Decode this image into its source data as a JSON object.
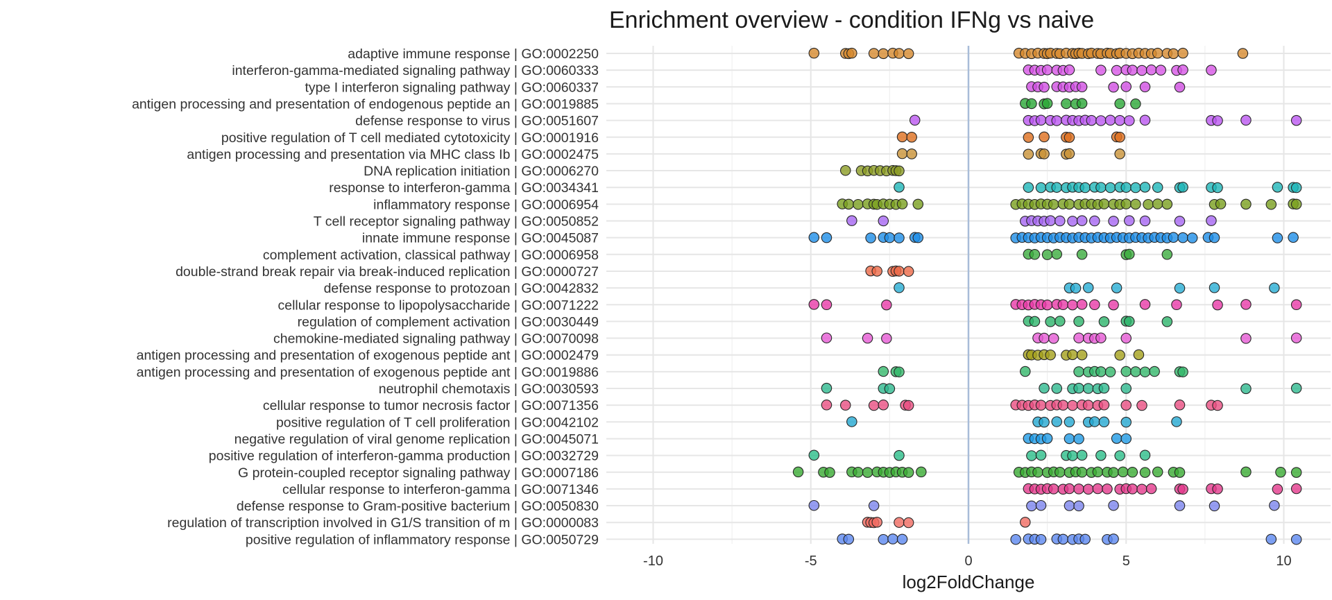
{
  "chart_data": {
    "type": "scatter",
    "title": "Enrichment overview - condition IFNg vs naive",
    "xlabel": "log2FoldChange",
    "ylabel": "",
    "xlim": [
      -10.9,
      10.9
    ],
    "x_ticks": [
      -10,
      -5,
      0,
      5,
      10
    ],
    "grid": "on",
    "legend": "none",
    "reference_line": 0,
    "series": [
      {
        "name": "adaptive immune response | GO:0002250",
        "color": "#d6892e",
        "values": [
          -4.9,
          -3.9,
          -3.8,
          -3.7,
          -3.0,
          -2.7,
          -2.4,
          -2.2,
          -1.9,
          1.6,
          1.8,
          2.0,
          2.2,
          2.4,
          2.5,
          2.6,
          2.8,
          2.9,
          3.1,
          3.3,
          3.4,
          3.5,
          3.6,
          3.8,
          3.9,
          4.1,
          4.2,
          4.4,
          4.5,
          4.7,
          4.8,
          5.0,
          5.2,
          5.4,
          5.6,
          5.8,
          6.0,
          6.3,
          6.5,
          6.8,
          8.7
        ]
      },
      {
        "name": "interferon-gamma-mediated signaling pathway | GO:0060333",
        "color": "#d755e6",
        "values": [
          1.9,
          2.1,
          2.3,
          2.5,
          2.8,
          3.0,
          3.2,
          4.2,
          4.7,
          5.0,
          5.2,
          5.5,
          5.8,
          6.1,
          6.6,
          6.8,
          7.7
        ]
      },
      {
        "name": "type I interferon signaling pathway | GO:0060337",
        "color": "#d14fe2",
        "values": [
          2.0,
          2.2,
          2.4,
          2.8,
          3.0,
          3.2,
          3.4,
          3.6,
          4.6,
          5.0,
          5.6,
          6.7
        ]
      },
      {
        "name": "antigen processing and presentation of endogenous peptide an | GO:0019885",
        "color": "#2ba836",
        "values": [
          1.8,
          2.0,
          2.4,
          2.5,
          3.1,
          3.4,
          3.6,
          4.8,
          5.3
        ]
      },
      {
        "name": "defense response to virus | GO:0051607",
        "color": "#bb57f1",
        "values": [
          -1.7,
          1.9,
          2.1,
          2.3,
          2.6,
          2.8,
          3.1,
          3.3,
          3.5,
          3.7,
          3.9,
          4.2,
          4.5,
          4.8,
          5.1,
          5.6,
          7.7,
          7.9,
          8.8,
          10.4
        ]
      },
      {
        "name": "positive regulation of T cell mediated cytotoxicity | GO:0001916",
        "color": "#de6f1e",
        "values": [
          -2.1,
          -1.8,
          1.9,
          2.4,
          3.1,
          3.2,
          4.7,
          4.8
        ]
      },
      {
        "name": "antigen processing and presentation via MHC class Ib | GO:0002475",
        "color": "#c99237",
        "values": [
          -2.1,
          -1.8,
          1.9,
          2.3,
          2.4,
          3.1,
          3.2,
          4.8
        ]
      },
      {
        "name": "DNA replication initiation | GO:0006270",
        "color": "#8c9c25",
        "values": [
          -3.9,
          -3.4,
          -3.2,
          -3.0,
          -2.8,
          -2.6,
          -2.4,
          -2.3,
          -2.2
        ]
      },
      {
        "name": "response to interferon-gamma | GO:0034341",
        "color": "#1fb6b9",
        "values": [
          -2.2,
          1.9,
          2.3,
          2.6,
          2.8,
          3.1,
          3.3,
          3.5,
          3.7,
          4.0,
          4.2,
          4.5,
          4.8,
          5.0,
          5.3,
          5.6,
          6.0,
          6.7,
          6.8,
          7.7,
          7.9,
          9.8,
          10.3,
          10.4
        ]
      },
      {
        "name": "inflammatory response | GO:0006954",
        "color": "#7ba01f",
        "values": [
          -4.0,
          -3.8,
          -3.5,
          -3.2,
          -3.0,
          -2.9,
          -2.7,
          -2.5,
          -2.3,
          -2.1,
          -1.6,
          1.5,
          1.7,
          1.9,
          2.1,
          2.3,
          2.5,
          2.7,
          3.0,
          3.2,
          3.5,
          3.7,
          3.9,
          4.1,
          4.3,
          4.6,
          4.8,
          5.0,
          5.3,
          5.7,
          6.0,
          6.3,
          7.8,
          8.0,
          8.8,
          9.6,
          10.3,
          10.4
        ]
      },
      {
        "name": "T cell receptor signaling pathway | GO:0050852",
        "color": "#a667f2",
        "values": [
          -3.7,
          -2.7,
          1.8,
          2.0,
          2.2,
          2.4,
          2.6,
          2.9,
          3.3,
          3.6,
          4.0,
          4.6,
          5.1,
          5.6,
          6.7,
          7.7
        ]
      },
      {
        "name": "innate immune response | GO:0045087",
        "color": "#1e8ee8",
        "values": [
          -4.9,
          -4.5,
          -3.1,
          -2.7,
          -2.5,
          -2.2,
          -1.7,
          -1.6,
          1.5,
          1.7,
          1.9,
          2.1,
          2.3,
          2.5,
          2.7,
          2.9,
          3.1,
          3.3,
          3.5,
          3.7,
          3.9,
          4.1,
          4.3,
          4.5,
          4.7,
          4.9,
          5.1,
          5.3,
          5.5,
          5.7,
          5.9,
          6.1,
          6.3,
          6.5,
          6.8,
          7.1,
          7.6,
          7.8,
          9.8,
          10.3
        ]
      },
      {
        "name": "complement activation, classical pathway | GO:0006958",
        "color": "#3cad3e",
        "values": [
          1.9,
          2.1,
          2.5,
          2.8,
          3.6,
          5.0,
          5.1,
          6.3
        ]
      },
      {
        "name": "double-strand break repair via break-induced replication | GO:0000727",
        "color": "#ee6a49",
        "values": [
          -3.1,
          -2.9,
          -2.4,
          -2.3,
          -2.2,
          -1.9
        ]
      },
      {
        "name": "defense response to protozoan | GO:0042832",
        "color": "#28aed4",
        "values": [
          -2.2,
          3.2,
          3.4,
          3.8,
          4.7,
          6.7,
          7.8,
          9.7
        ]
      },
      {
        "name": "cellular response to lipopolysaccharide | GO:0071222",
        "color": "#e83aa8",
        "values": [
          -4.9,
          -4.5,
          -2.6,
          1.5,
          1.7,
          1.9,
          2.1,
          2.3,
          2.5,
          2.8,
          3.0,
          3.3,
          3.6,
          4.0,
          4.6,
          5.6,
          6.6,
          7.9,
          8.8,
          10.4
        ]
      },
      {
        "name": "regulation of complement activation | GO:0030449",
        "color": "#2db56b",
        "values": [
          1.9,
          2.1,
          2.6,
          2.9,
          3.5,
          4.3,
          5.0,
          5.1,
          6.3
        ]
      },
      {
        "name": "chemokine-mediated signaling pathway | GO:0070098",
        "color": "#e65ad4",
        "values": [
          -4.5,
          -3.2,
          -2.6,
          2.2,
          2.4,
          2.7,
          3.5,
          3.8,
          4.0,
          4.2,
          5.0,
          8.8,
          10.4
        ]
      },
      {
        "name": "antigen processing and presentation of exogenous peptide ant | GO:0002479",
        "color": "#a5a11b",
        "values": [
          1.9,
          2.0,
          2.2,
          2.4,
          2.6,
          3.1,
          3.3,
          3.6,
          4.8,
          5.4
        ]
      },
      {
        "name": "antigen processing and presentation of exogenous peptide ant | GO:0019886",
        "color": "#35b86c",
        "values": [
          -2.7,
          -2.3,
          -2.2,
          1.8,
          3.5,
          3.8,
          4.0,
          4.2,
          4.5,
          5.0,
          5.3,
          5.6,
          5.9,
          6.7,
          6.8
        ]
      },
      {
        "name": "neutrophil chemotaxis | GO:0030593",
        "color": "#2eb98f",
        "values": [
          -4.5,
          -2.7,
          -2.5,
          2.4,
          2.8,
          3.3,
          3.5,
          3.8,
          4.1,
          4.3,
          5.0,
          8.8,
          10.4
        ]
      },
      {
        "name": "cellular response to tumor necrosis factor | GO:0071356",
        "color": "#ea4f82",
        "values": [
          -4.5,
          -3.9,
          -3.0,
          -2.7,
          -2.0,
          -1.9,
          1.5,
          1.7,
          1.9,
          2.1,
          2.3,
          2.6,
          2.8,
          3.0,
          3.3,
          3.6,
          3.8,
          4.1,
          4.3,
          5.0,
          5.5,
          6.7,
          7.7,
          7.9
        ]
      },
      {
        "name": "positive regulation of T cell proliferation | GO:0042102",
        "color": "#24a9d2",
        "values": [
          -3.7,
          2.2,
          2.4,
          2.8,
          3.2,
          3.8,
          4.0,
          4.3,
          5.0,
          6.6
        ]
      },
      {
        "name": "negative regulation of viral genome replication | GO:0045071",
        "color": "#1f9be6",
        "values": [
          1.9,
          2.1,
          2.3,
          2.5,
          3.2,
          3.5,
          4.7,
          5.0
        ]
      },
      {
        "name": "positive regulation of interferon-gamma production | GO:0032729",
        "color": "#2cbe8a",
        "values": [
          -4.9,
          -2.2,
          2.0,
          2.3,
          3.1,
          3.3,
          3.6,
          4.2,
          4.8,
          5.6
        ]
      },
      {
        "name": "G protein-coupled receptor signaling pathway | GO:0007186",
        "color": "#3aab33",
        "values": [
          -5.4,
          -4.6,
          -4.4,
          -3.7,
          -3.5,
          -3.2,
          -2.9,
          -2.7,
          -2.5,
          -2.3,
          -2.1,
          -1.9,
          -1.5,
          1.6,
          1.8,
          2.0,
          2.2,
          2.5,
          2.7,
          2.9,
          3.2,
          3.4,
          3.6,
          3.9,
          4.1,
          4.4,
          4.6,
          4.9,
          5.2,
          5.6,
          6.0,
          6.5,
          6.7,
          8.8,
          9.9,
          10.4
        ]
      },
      {
        "name": "cellular response to interferon-gamma | GO:0071346",
        "color": "#e33a8c",
        "values": [
          1.9,
          2.1,
          2.3,
          2.5,
          2.7,
          3.0,
          3.2,
          3.5,
          3.8,
          4.1,
          4.4,
          4.8,
          5.0,
          5.2,
          5.5,
          5.8,
          6.7,
          6.8,
          7.7,
          7.9,
          9.8,
          10.4
        ]
      },
      {
        "name": "defense response to Gram-positive bacterium | GO:0050830",
        "color": "#7c84ee",
        "values": [
          -4.9,
          -3.0,
          2.0,
          2.3,
          3.2,
          3.5,
          4.6,
          6.7,
          7.8,
          9.7
        ]
      },
      {
        "name": "regulation of transcription involved in G1/S transition of m | GO:0000083",
        "color": "#f16b62",
        "values": [
          -3.2,
          -3.1,
          -3.0,
          -2.9,
          -2.2,
          -1.9,
          1.8
        ]
      },
      {
        "name": "positive regulation of inflammatory response | GO:0050729",
        "color": "#5d88f0",
        "values": [
          -4.0,
          -3.8,
          -2.7,
          -2.4,
          -2.1,
          1.5,
          1.9,
          2.1,
          2.3,
          2.8,
          3.0,
          3.3,
          3.5,
          3.7,
          4.4,
          4.6,
          9.6,
          10.4
        ]
      }
    ]
  }
}
